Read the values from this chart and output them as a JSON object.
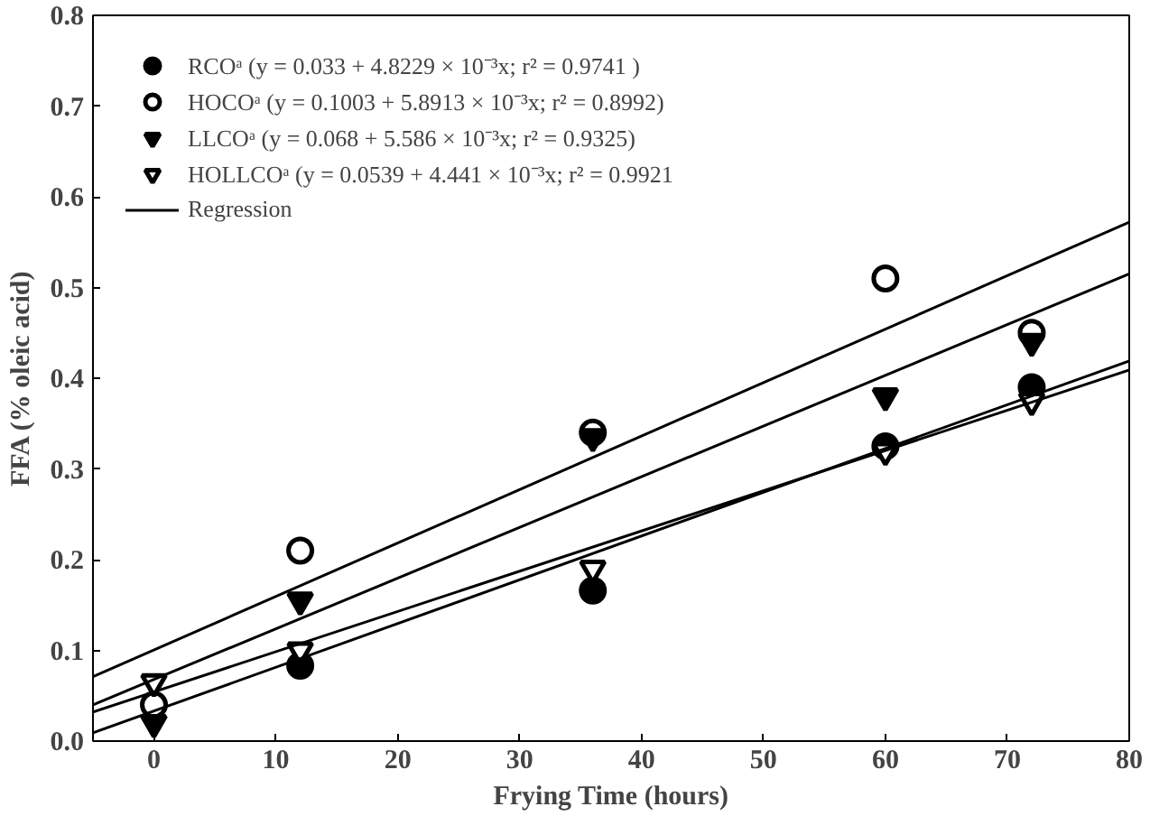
{
  "chart_data": {
    "type": "scatter",
    "xlabel": "Frying Time (hours)",
    "ylabel": "FFA (% oleic acid)",
    "xlim": [
      -5,
      80
    ],
    "ylim": [
      0,
      0.8
    ],
    "xticks": [
      0,
      10,
      20,
      30,
      40,
      50,
      60,
      70,
      80
    ],
    "yticks": [
      {
        "value": 0,
        "label": "0.0"
      },
      0.1,
      0.2,
      0.3,
      0.4,
      0.5,
      0.6,
      0.7,
      0.8
    ],
    "grid": false,
    "legend": "top left",
    "series": [
      {
        "name": "RCOᵃ (y = 0.033 + 4.8229 × 10⁻³x; r² = 0.9741 )",
        "color": "#000000",
        "marker": "circle",
        "x": [
          12,
          36,
          60,
          72
        ],
        "values": [
          0.083,
          0.166,
          0.325,
          0.39
        ]
      },
      {
        "name": "HOCOᵃ (y = 0.1003 + 5.8913 × 10⁻³x; r² = 0.8992)",
        "color": "#ffffff",
        "marker": "circle",
        "x": [
          0,
          12,
          36,
          60,
          72
        ],
        "values": [
          0.04,
          0.21,
          0.34,
          0.51,
          0.45
        ]
      },
      {
        "name": "LLCOᵃ (y = 0.068 + 5.586 × 10⁻³x; r² = 0.9325)",
        "color": "#000000",
        "marker": "triangle",
        "x": [
          0,
          12,
          36,
          60,
          72
        ],
        "values": [
          0.02,
          0.155,
          0.335,
          0.38,
          0.44
        ]
      },
      {
        "name": "HOLLCOᵃ (y = 0.0539 + 4.441 × 10⁻³x; r² = 0.9921",
        "color": "#ffffff",
        "marker": "triangle",
        "x": [
          0,
          12,
          36,
          60,
          72
        ],
        "values": [
          0.065,
          0.1,
          0.19,
          0.32,
          0.375
        ]
      },
      {
        "name": "Regression",
        "type": "line",
        "color": "#000000",
        "x": [
          -5,
          80
        ],
        "values": [
          0.009,
          0.419
        ]
      },
      {
        "type": "line",
        "color": "#000000",
        "x": [
          -5,
          80
        ],
        "values": [
          0.071,
          0.572
        ]
      },
      {
        "type": "line",
        "color": "#000000",
        "x": [
          -5,
          80
        ],
        "values": [
          0.04,
          0.515
        ]
      },
      {
        "type": "line",
        "color": "#000000",
        "x": [
          -5,
          80
        ],
        "values": [
          0.032,
          0.409
        ]
      }
    ]
  }
}
